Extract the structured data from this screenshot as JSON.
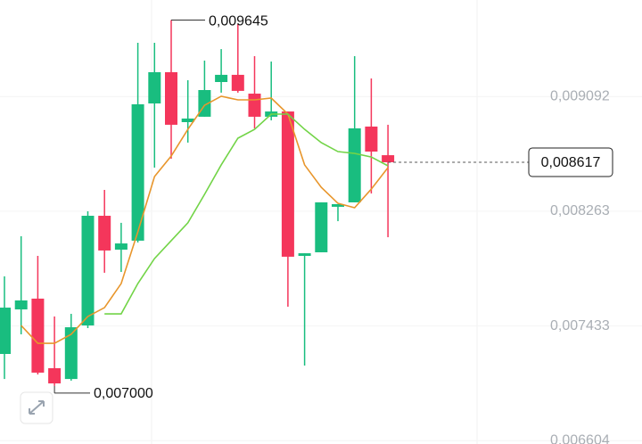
{
  "chart_data": {
    "type": "candlestick",
    "open": [
      0.007231,
      0.007553,
      0.007631,
      0.007128,
      0.00705,
      0.007437,
      0.00823,
      0.007985,
      0.00805,
      0.009042,
      0.009268,
      0.008907,
      0.008946,
      0.009197,
      0.009249,
      0.009113,
      0.008946,
      0.008984,
      0.00794,
      0.007966,
      0.008295,
      0.008327,
      0.008875,
      0.008668
    ],
    "high": [
      0.007792,
      0.008082,
      0.00794,
      0.007502,
      0.007521,
      0.008262,
      0.008417,
      0.008179,
      0.009481,
      0.009481,
      0.009645,
      0.00921,
      0.009352,
      0.009435,
      0.009616,
      0.009384,
      0.009345,
      0.008984,
      0.007959,
      0.008327,
      0.008314,
      0.009384,
      0.009223,
      0.008888
    ],
    "low": [
      0.00705,
      0.007373,
      0.007083,
      0.007,
      0.007038,
      0.007418,
      0.007818,
      0.007824,
      0.008037,
      0.008578,
      0.008643,
      0.008759,
      0.008946,
      0.00912,
      0.00912,
      0.008862,
      0.00892,
      0.007573,
      0.007147,
      0.007966,
      0.008191,
      0.008327,
      0.008391,
      0.008075
    ],
    "close": [
      0.007566,
      0.007618,
      0.007096,
      0.007018,
      0.007424,
      0.00823,
      0.007979,
      0.00803,
      0.009036,
      0.009268,
      0.008888,
      0.008933,
      0.009139,
      0.009249,
      0.009133,
      0.008946,
      0.008984,
      0.007934,
      0.007959,
      0.008327,
      0.008314,
      0.008862,
      0.008694,
      0.008617
    ],
    "up_color": "#19bd7f",
    "down_color": "#f4365b",
    "ma_lines": [
      {
        "color": "#e8962c",
        "values": [
          null,
          0.007437,
          0.007308,
          0.007308,
          0.007373,
          0.007502,
          0.007566,
          0.00774,
          0.008114,
          0.008514,
          0.008662,
          0.008855,
          0.009029,
          0.009094,
          0.009068,
          0.009068,
          0.009081,
          0.008965,
          0.008598,
          0.008436,
          0.00832,
          0.008288,
          0.008423,
          0.008578
        ]
      },
      {
        "color": "#72d447",
        "values": [
          null,
          null,
          null,
          null,
          null,
          null,
          0.007521,
          0.007521,
          0.00774,
          0.007921,
          0.00805,
          0.008179,
          0.008385,
          0.008598,
          0.008791,
          0.008855,
          0.008965,
          0.008965,
          0.008855,
          0.008759,
          0.008694,
          0.008681,
          0.008655,
          0.008591
        ]
      }
    ],
    "ylim": [
      0.00658,
      0.00979
    ],
    "yticks": [
      {
        "value": 0.009092,
        "label": "0,009092"
      },
      {
        "value": 0.008263,
        "label": "0,008263"
      },
      {
        "value": 0.007433,
        "label": "0,007433"
      },
      {
        "value": 0.006604,
        "label": "0,006604"
      }
    ],
    "high_marker": {
      "value": 0.009645,
      "label": "0,009645"
    },
    "low_marker": {
      "value": 0.007,
      "label": "0,007000"
    },
    "last_price": {
      "value": 0.008617,
      "label": "0,008617"
    },
    "grid": true
  }
}
